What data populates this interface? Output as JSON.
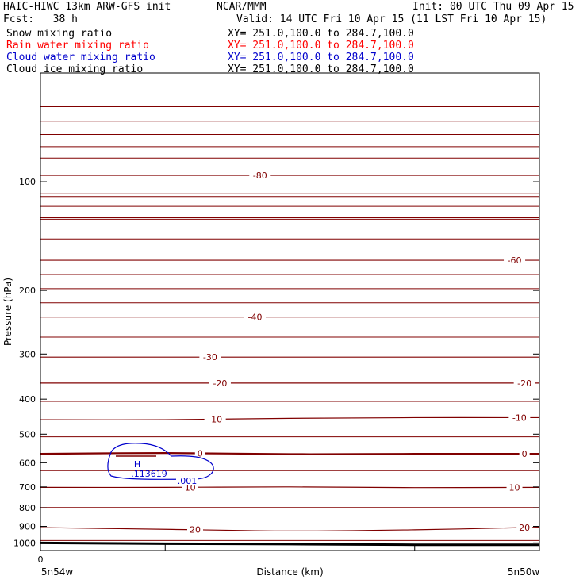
{
  "header": {
    "model": "HAIC-HIWC 13km ARW-GFS init",
    "org": "NCAR/MMM",
    "init": "Init: 00 UTC Thu 09 Apr 15",
    "fcst": "Fcst:   38 h",
    "valid": "Valid: 14 UTC Fri 10 Apr 15 (11 LST Fri 10 Apr 15)",
    "fields": [
      {
        "name": "Snow mixing ratio",
        "xy": "XY= 251.0,100.0 to 284.7,100.0",
        "color": "#000000"
      },
      {
        "name": "Rain water mixing ratio",
        "xy": "XY= 251.0,100.0 to 284.7,100.0",
        "color": "#ff0000"
      },
      {
        "name": "Cloud water mixing ratio",
        "xy": "XY= 251.0,100.0 to 284.7,100.0",
        "color": "#0000cc"
      },
      {
        "name": "Cloud ice mixing ratio",
        "xy": "XY= 251.0,100.0 to 284.7,100.0",
        "color": "#000000"
      }
    ]
  },
  "chart_data": {
    "type": "line",
    "xlabel": "Distance (km)",
    "ylabel": "Pressure (hPa)",
    "x_tick_labels": [
      "0"
    ],
    "x_end_labels": [
      "5n54w",
      "5n50w"
    ],
    "x_ticks_count": 5,
    "yticks": [
      100,
      200,
      300,
      400,
      500,
      600,
      700,
      800,
      900,
      1000
    ],
    "ylim": [
      1050,
      50
    ],
    "y_scale": "log",
    "colors": {
      "temperature": "#800000",
      "cloud_water": "#0000cc",
      "terrain": "#000000",
      "axes": "#000000"
    },
    "temperature_contours": [
      {
        "label": "-80",
        "pressure": [
          96,
          96,
          96,
          96,
          96
        ]
      },
      {
        "label": "-60",
        "pressure": [
          165,
          165,
          165,
          165,
          165
        ]
      },
      {
        "label": "-40",
        "pressure": [
          237,
          237,
          237,
          237,
          237
        ]
      },
      {
        "label": "-30",
        "pressure": [
          306,
          306,
          306,
          306,
          306
        ]
      },
      {
        "label": "-20",
        "pressure": [
          361,
          361,
          361,
          361,
          361
        ]
      },
      {
        "label": "-10",
        "pressure": [
          456,
          456,
          452,
          450,
          450
        ]
      },
      {
        "label": "0",
        "pressure": [
          567,
          564,
          568,
          567,
          567
        ]
      },
      {
        "label": "10",
        "pressure": [
          702,
          702,
          700,
          703,
          702
        ]
      },
      {
        "label": "20",
        "pressure": [
          907,
          917,
          927,
          920,
          905
        ]
      }
    ],
    "cloud_water": {
      "max_label": "H",
      "max_value": ".113619",
      "contour_label": ".001"
    },
    "terrain_pressure": [
      1000,
      1005,
      1008,
      1012,
      1012
    ]
  }
}
